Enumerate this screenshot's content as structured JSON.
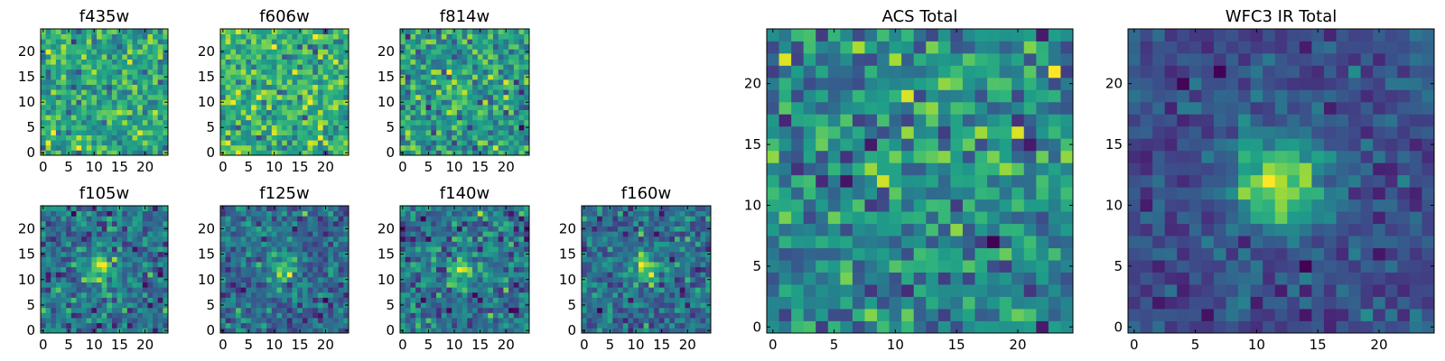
{
  "chart_data": [
    {
      "type": "heatmap",
      "title": "f435w",
      "grid_size": [
        24,
        24
      ],
      "xticks": [
        0,
        5,
        10,
        15,
        20
      ],
      "yticks": [
        0,
        5,
        10,
        15,
        20
      ],
      "xlim": [
        -0.5,
        24.5
      ],
      "ylim": [
        -0.5,
        24.5
      ],
      "colormap": "viridis",
      "source_center": null,
      "description": "uniform noise"
    },
    {
      "type": "heatmap",
      "title": "f606w",
      "grid_size": [
        24,
        24
      ],
      "xticks": [
        0,
        5,
        10,
        15,
        20
      ],
      "yticks": [
        0,
        5,
        10,
        15,
        20
      ],
      "xlim": [
        -0.5,
        24.5
      ],
      "ylim": [
        -0.5,
        24.5
      ],
      "colormap": "viridis",
      "source_center": null,
      "description": "uniform noise"
    },
    {
      "type": "heatmap",
      "title": "f814w",
      "grid_size": [
        24,
        24
      ],
      "xticks": [
        0,
        5,
        10,
        15,
        20
      ],
      "yticks": [
        0,
        5,
        10,
        15,
        20
      ],
      "xlim": [
        -0.5,
        24.5
      ],
      "ylim": [
        -0.5,
        24.5
      ],
      "colormap": "viridis",
      "source_center": [
        12,
        12
      ],
      "description": "faint source near center"
    },
    {
      "type": "heatmap",
      "title": "f105w",
      "grid_size": [
        24,
        24
      ],
      "xticks": [
        0,
        5,
        10,
        15,
        20
      ],
      "yticks": [
        0,
        5,
        10,
        15,
        20
      ],
      "xlim": [
        -0.5,
        24.5
      ],
      "ylim": [
        -0.5,
        24.5
      ],
      "colormap": "viridis",
      "source_center": [
        11,
        12
      ],
      "description": "source at center"
    },
    {
      "type": "heatmap",
      "title": "f125w",
      "grid_size": [
        24,
        24
      ],
      "xticks": [
        0,
        5,
        10,
        15,
        20
      ],
      "yticks": [
        0,
        5,
        10,
        15,
        20
      ],
      "xlim": [
        -0.5,
        24.5
      ],
      "ylim": [
        -0.5,
        24.5
      ],
      "colormap": "viridis",
      "source_center": [
        12,
        12
      ],
      "description": "source at center"
    },
    {
      "type": "heatmap",
      "title": "f140w",
      "grid_size": [
        24,
        24
      ],
      "xticks": [
        0,
        5,
        10,
        15,
        20
      ],
      "yticks": [
        0,
        5,
        10,
        15,
        20
      ],
      "xlim": [
        -0.5,
        24.5
      ],
      "ylim": [
        -0.5,
        24.5
      ],
      "colormap": "viridis",
      "source_center": [
        12,
        12
      ],
      "description": "source at center"
    },
    {
      "type": "heatmap",
      "title": "f160w",
      "grid_size": [
        24,
        24
      ],
      "xticks": [
        0,
        5,
        10,
        15,
        20
      ],
      "yticks": [
        0,
        5,
        10,
        15,
        20
      ],
      "xlim": [
        -0.5,
        24.5
      ],
      "ylim": [
        -0.5,
        24.5
      ],
      "colormap": "viridis",
      "source_center": [
        12,
        12
      ],
      "description": "source at center"
    },
    {
      "type": "heatmap",
      "title": "ACS Total",
      "grid_size": [
        24,
        24
      ],
      "xticks": [
        0,
        5,
        10,
        15,
        20
      ],
      "yticks": [
        0,
        5,
        10,
        15,
        20
      ],
      "xlim": [
        -0.5,
        24.5
      ],
      "ylim": [
        -0.5,
        24.5
      ],
      "colormap": "viridis",
      "source_center": [
        12,
        13
      ],
      "description": "noisy stack with faint central excess"
    },
    {
      "type": "heatmap",
      "title": "WFC3 IR Total",
      "grid_size": [
        24,
        24
      ],
      "xticks": [
        0,
        5,
        10,
        15,
        20
      ],
      "yticks": [
        0,
        5,
        10,
        15,
        20
      ],
      "xlim": [
        -0.5,
        24.5
      ],
      "ylim": [
        -0.5,
        24.5
      ],
      "colormap": "viridis",
      "source_center": [
        12,
        12
      ],
      "description": "clear central source"
    }
  ]
}
